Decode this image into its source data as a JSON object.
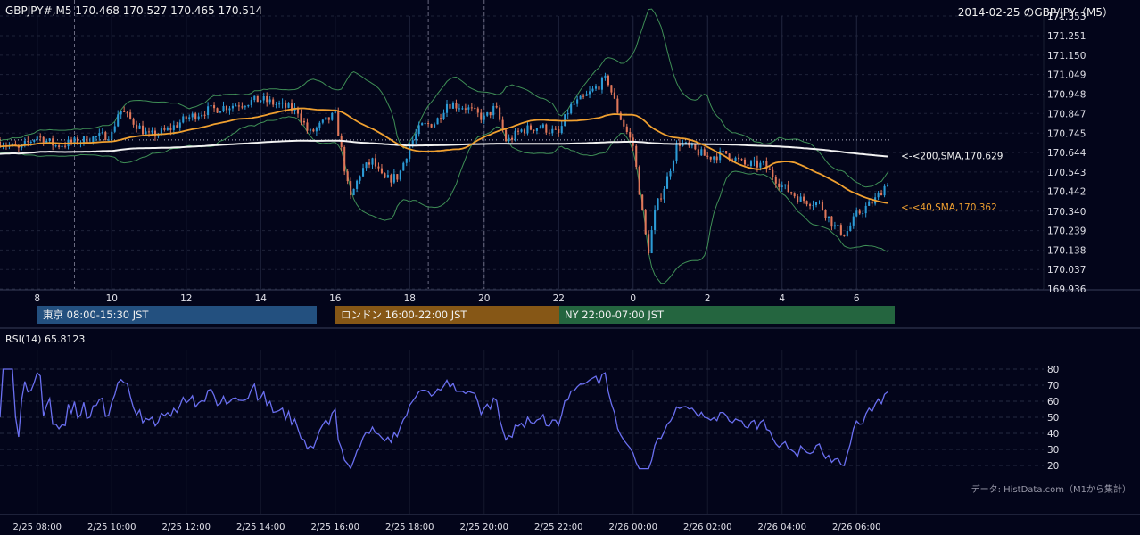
{
  "header": {
    "symbol_ohlc": "GBPJPY#,M5 170.468 170.527 170.465 170.514",
    "title": "2014-02-25 のGBP/JPY（M5）"
  },
  "sessions": [
    {
      "label": "東京 08:00-15:30 JST",
      "color": "#23507f"
    },
    {
      "label": "ロンドン 16:00-22:00 JST",
      "color": "#865716"
    },
    {
      "label": "NY 22:00-07:00 JST",
      "color": "#24653f"
    }
  ],
  "rsi_label": "RSI(14) 65.8123",
  "credit": "データ: HistData.com（M1から集計）",
  "colors": {
    "background": "#03051a",
    "up_candle": "#2c9bd6",
    "down_candle": "#e0775a",
    "sma40": "#f0a030",
    "sma200": "#f2f2f2",
    "bollinger": "#3f8f56",
    "rsi": "#6a6ff0",
    "grid": "#1e2238"
  },
  "chart_data": [
    {
      "type": "candlestick",
      "title": "2014-02-25 のGBP/JPY（M5）",
      "y_ticks": [
        "171.353",
        "171.251",
        "171.150",
        "171.049",
        "170.948",
        "170.847",
        "170.745",
        "170.644",
        "170.543",
        "170.442",
        "170.340",
        "170.239",
        "170.138",
        "170.037",
        "169.936"
      ],
      "ylim": [
        169.936,
        171.353
      ],
      "x_ticks": [
        "8",
        "10",
        "12",
        "14",
        "16",
        "18",
        "20",
        "22",
        "0",
        "2",
        "4",
        "6"
      ],
      "x_tick_hours": [
        8,
        10,
        12,
        14,
        16,
        18,
        20,
        22,
        24,
        26,
        28,
        30
      ],
      "xlim_hours": [
        7.0,
        31.0
      ],
      "price_anchors": [
        [
          7.0,
          170.7
        ],
        [
          7.5,
          170.66
        ],
        [
          8.0,
          170.73
        ],
        [
          8.5,
          170.68
        ],
        [
          9.0,
          170.7
        ],
        [
          9.5,
          170.72
        ],
        [
          10.0,
          170.74
        ],
        [
          10.2,
          170.87
        ],
        [
          10.6,
          170.8
        ],
        [
          11.0,
          170.73
        ],
        [
          11.5,
          170.76
        ],
        [
          12.0,
          170.82
        ],
        [
          12.5,
          170.86
        ],
        [
          13.0,
          170.88
        ],
        [
          13.5,
          170.9
        ],
        [
          14.0,
          170.92
        ],
        [
          14.5,
          170.89
        ],
        [
          15.0,
          170.86
        ],
        [
          15.3,
          170.74
        ],
        [
          15.7,
          170.8
        ],
        [
          16.0,
          170.84
        ],
        [
          16.2,
          170.62
        ],
        [
          16.4,
          170.4
        ],
        [
          16.7,
          170.55
        ],
        [
          17.0,
          170.6
        ],
        [
          17.3,
          170.5
        ],
        [
          17.7,
          170.52
        ],
        [
          18.0,
          170.68
        ],
        [
          18.3,
          170.78
        ],
        [
          18.7,
          170.8
        ],
        [
          19.0,
          170.9
        ],
        [
          19.5,
          170.88
        ],
        [
          20.0,
          170.82
        ],
        [
          20.3,
          170.88
        ],
        [
          20.6,
          170.7
        ],
        [
          21.0,
          170.76
        ],
        [
          21.5,
          170.78
        ],
        [
          22.0,
          170.74
        ],
        [
          22.3,
          170.88
        ],
        [
          22.7,
          170.93
        ],
        [
          23.0,
          170.98
        ],
        [
          23.3,
          171.03
        ],
        [
          23.6,
          170.85
        ],
        [
          24.0,
          170.68
        ],
        [
          24.2,
          170.4
        ],
        [
          24.4,
          170.12
        ],
        [
          24.6,
          170.35
        ],
        [
          24.9,
          170.5
        ],
        [
          25.2,
          170.7
        ],
        [
          25.6,
          170.66
        ],
        [
          26.0,
          170.62
        ],
        [
          26.5,
          170.64
        ],
        [
          27.0,
          170.58
        ],
        [
          27.5,
          170.58
        ],
        [
          28.0,
          170.47
        ],
        [
          28.5,
          170.4
        ],
        [
          29.0,
          170.38
        ],
        [
          29.4,
          170.26
        ],
        [
          29.7,
          170.22
        ],
        [
          30.0,
          170.32
        ],
        [
          30.5,
          170.4
        ],
        [
          30.9,
          170.51
        ]
      ],
      "series": [
        {
          "name": "SMA(200)",
          "label": "<-<200,SMA,170.629",
          "last": 170.629
        },
        {
          "name": "SMA(40)",
          "label": "<-<40,SMA,170.362",
          "last": 170.362
        },
        {
          "name": "Bollinger Bands"
        }
      ],
      "reference_line": 170.71
    },
    {
      "type": "line",
      "title": "RSI(14) 65.8123",
      "y_ticks": [
        "80",
        "70",
        "60",
        "50",
        "40",
        "30",
        "20"
      ],
      "ylim": [
        15,
        85
      ],
      "last": 65.8123
    }
  ],
  "x_axis_labels": [
    "2/25 08:00",
    "2/25 10:00",
    "2/25 12:00",
    "2/25 14:00",
    "2/25 16:00",
    "2/25 18:00",
    "2/25 20:00",
    "2/25 22:00",
    "2/26 00:00",
    "2/26 02:00",
    "2/26 04:00",
    "2/26 06:00"
  ]
}
